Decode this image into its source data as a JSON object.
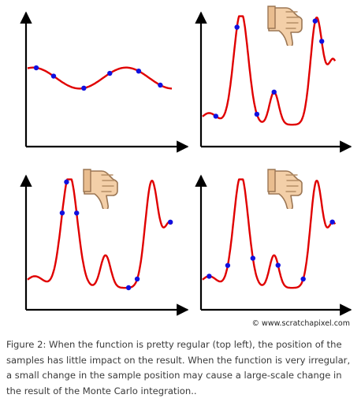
{
  "figure": {
    "credit": "© www.scratchapixel.com",
    "caption": "Figure 2: When the function is pretty regular (top left), the position of the samples has little impact on the result. When the function is very irregular, a small change in the sample position may cause a large-scale change in the result of the Monte Carlo integration..",
    "panels": [
      {
        "name": "top-left-regular-function",
        "curve": "smooth",
        "thumbs_down": false,
        "samples": [
          0.06,
          0.18,
          0.39,
          0.57,
          0.77,
          0.92
        ]
      },
      {
        "name": "top-right-irregular-function",
        "curve": "wavy",
        "thumbs_down": true,
        "samples": [
          0.1,
          0.26,
          0.41,
          0.54,
          0.85,
          0.9
        ]
      },
      {
        "name": "bottom-left-irregular-function",
        "curve": "wavy",
        "thumbs_down": true,
        "samples": [
          0.24,
          0.27,
          0.34,
          0.7,
          0.76,
          0.99
        ]
      },
      {
        "name": "bottom-right-irregular-function",
        "curve": "wavy",
        "thumbs_down": true,
        "samples": [
          0.05,
          0.19,
          0.38,
          0.57,
          0.76,
          0.98
        ]
      }
    ],
    "colors": {
      "curve": "#e00000",
      "sample": "#1010e0",
      "axis": "#000000"
    }
  }
}
